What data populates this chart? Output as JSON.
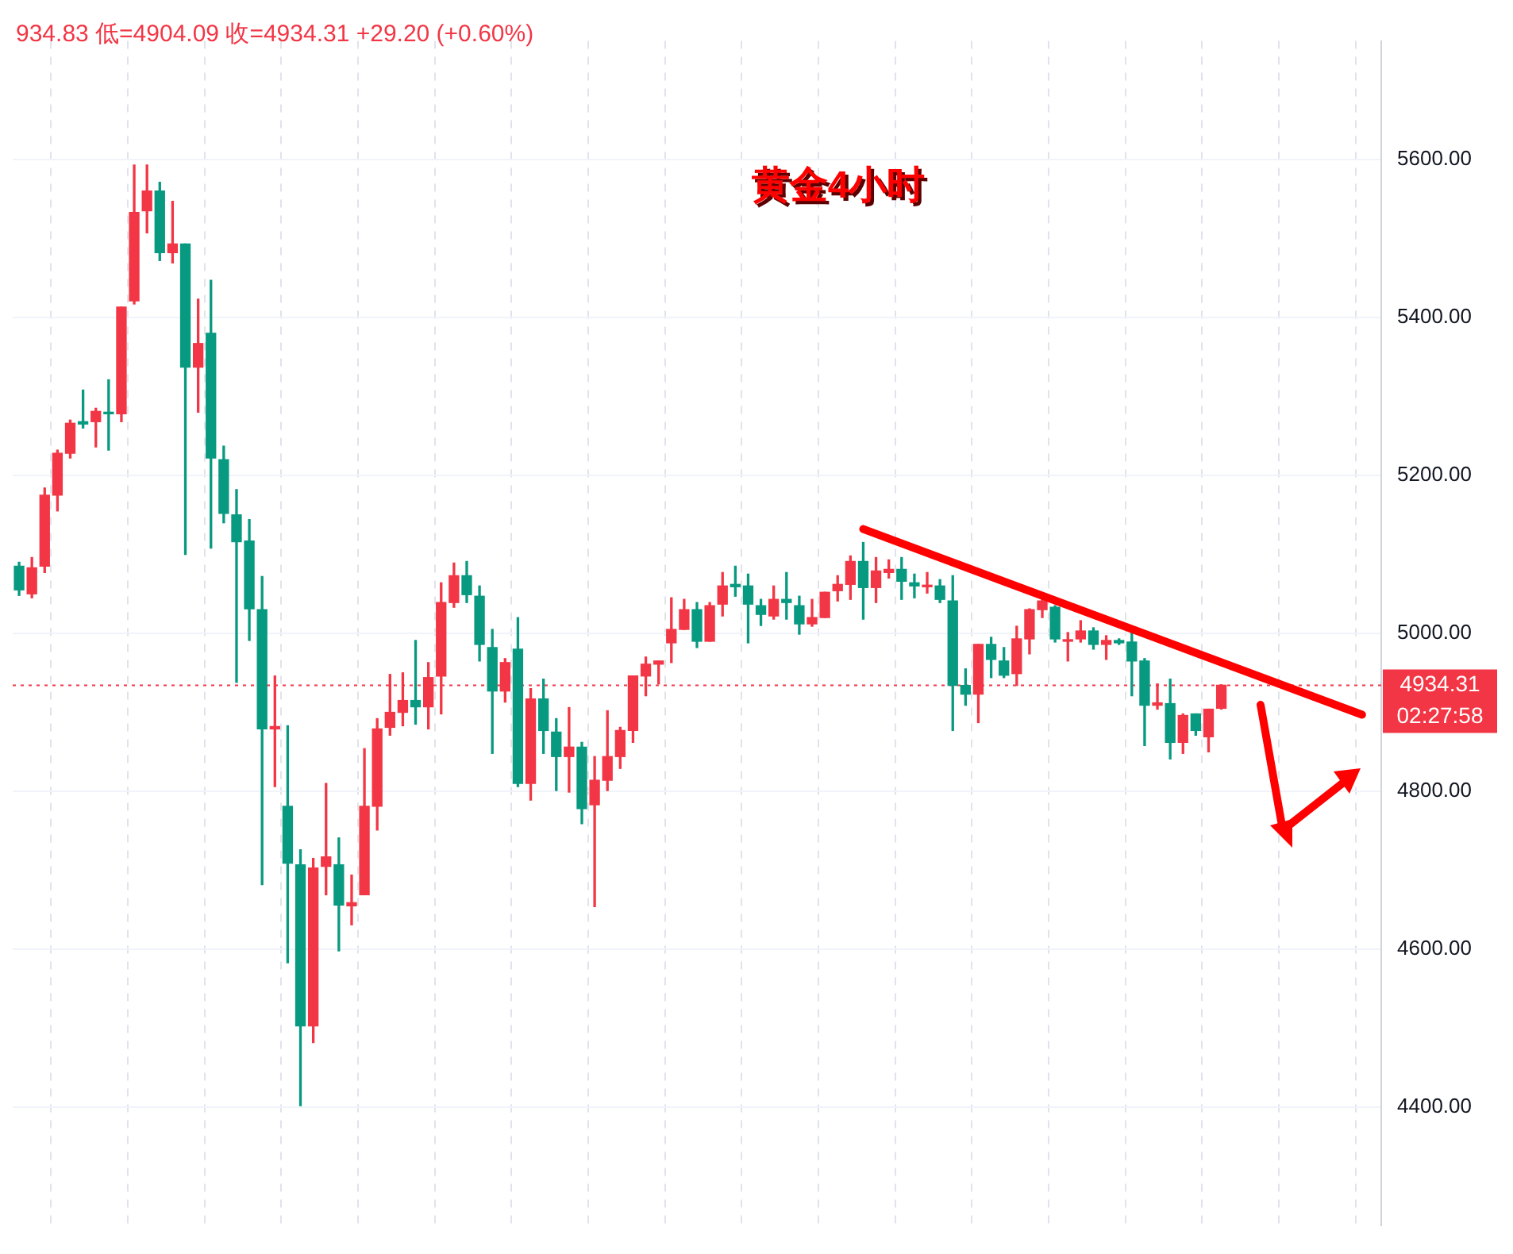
{
  "chart_data": {
    "type": "candlestick",
    "title": "黄金4小时",
    "annotations": [
      "934.83 低=4904.09 收=4934.31 +29.20 (+0.60%)",
      "02:27:58"
    ],
    "categories": [
      null,
      null,
      null,
      null,
      null,
      null,
      null,
      null,
      null,
      null,
      null,
      null,
      null,
      null,
      null,
      null,
      null,
      null,
      null,
      null,
      null,
      null,
      null,
      null,
      null,
      null,
      null,
      null,
      null,
      null,
      null,
      null,
      null,
      null,
      null,
      null,
      null,
      null,
      null,
      null,
      null,
      null,
      null,
      null,
      null,
      null,
      null,
      null,
      null,
      null,
      null,
      null,
      null,
      null,
      null,
      null,
      null,
      null,
      null,
      null,
      null,
      null,
      null,
      null,
      null,
      null,
      null,
      null,
      null,
      null,
      null,
      null,
      null,
      null,
      null,
      null,
      null,
      null,
      null,
      null,
      null,
      null,
      null,
      null,
      null,
      null,
      null,
      null,
      null,
      null,
      null,
      null,
      null,
      null,
      null,
      null,
      null,
      null,
      null,
      null,
      null,
      null,
      null,
      null,
      null,
      null,
      null
    ],
    "ohlc": [
      [
        5085,
        5090,
        5048,
        5055
      ],
      [
        5050,
        5096,
        5045,
        5083
      ],
      [
        5085,
        5184,
        5077,
        5175
      ],
      [
        5175,
        5232,
        5155,
        5228
      ],
      [
        5228,
        5270,
        5222,
        5266
      ],
      [
        5268,
        5308,
        5260,
        5265
      ],
      [
        5268,
        5285,
        5236,
        5281
      ],
      [
        5280,
        5321,
        5232,
        5278
      ],
      [
        5278,
        5413,
        5268,
        5413
      ],
      [
        5421,
        5593,
        5417,
        5533
      ],
      [
        5535,
        5593,
        5507,
        5560
      ],
      [
        5560,
        5571,
        5472,
        5482
      ],
      [
        5482,
        5547,
        5469,
        5493
      ],
      [
        5493,
        5493,
        5100,
        5337
      ],
      [
        5337,
        5423,
        5280,
        5367
      ],
      [
        5380,
        5447,
        5108,
        5222
      ],
      [
        5220,
        5237,
        5140,
        5152
      ],
      [
        5150,
        5182,
        4938,
        5116
      ],
      [
        5117,
        5144,
        4991,
        5031
      ],
      [
        5030,
        5072,
        4682,
        4879
      ],
      [
        4879,
        4946,
        4806,
        4882
      ],
      [
        4781,
        4883,
        4583,
        4709
      ],
      [
        4707,
        4726,
        4402,
        4503
      ],
      [
        4503,
        4715,
        4482,
        4703
      ],
      [
        4705,
        4810,
        4669,
        4717
      ],
      [
        4707,
        4741,
        4598,
        4656
      ],
      [
        4655,
        4694,
        4631,
        4659
      ],
      [
        4669,
        4854,
        4669,
        4781
      ],
      [
        4781,
        4892,
        4751,
        4879
      ],
      [
        4881,
        4948,
        4871,
        4900
      ],
      [
        4900,
        4950,
        4883,
        4915
      ],
      [
        4915,
        4991,
        4885,
        4907
      ],
      [
        4907,
        4963,
        4879,
        4944
      ],
      [
        4946,
        5064,
        4898,
        5039
      ],
      [
        5039,
        5089,
        5033,
        5073
      ],
      [
        5073,
        5091,
        5039,
        5049
      ],
      [
        5047,
        5060,
        4965,
        4986
      ],
      [
        4982,
        5005,
        4848,
        4927
      ],
      [
        4927,
        4968,
        4913,
        4963
      ],
      [
        4980,
        5020,
        4806,
        4810
      ],
      [
        4810,
        4930,
        4789,
        4917
      ],
      [
        4917,
        4942,
        4848,
        4877
      ],
      [
        4875,
        4892,
        4801,
        4844
      ],
      [
        4844,
        4906,
        4799,
        4856
      ],
      [
        4856,
        4862,
        4759,
        4778
      ],
      [
        4783,
        4844,
        4654,
        4814
      ],
      [
        4814,
        4902,
        4801,
        4844
      ],
      [
        4844,
        4881,
        4829,
        4877
      ],
      [
        4877,
        4946,
        4862,
        4946
      ],
      [
        4946,
        4970,
        4921,
        4961
      ],
      [
        4961,
        4965,
        4936,
        4965
      ],
      [
        4988,
        5045,
        4963,
        5005
      ],
      [
        5005,
        5043,
        5005,
        5030
      ],
      [
        5030,
        5039,
        4982,
        4990
      ],
      [
        4990,
        5039,
        4990,
        5035
      ],
      [
        5037,
        5077,
        5022,
        5060
      ],
      [
        5062,
        5085,
        5047,
        5059
      ],
      [
        5060,
        5075,
        4988,
        5037
      ],
      [
        5035,
        5043,
        5010,
        5024
      ],
      [
        5022,
        5060,
        5018,
        5043
      ],
      [
        5043,
        5077,
        5018,
        5039
      ],
      [
        5035,
        5047,
        4999,
        5012
      ],
      [
        5012,
        5043,
        5009,
        5020
      ],
      [
        5020,
        5052,
        5020,
        5052
      ],
      [
        5054,
        5073,
        5041,
        5062
      ],
      [
        5062,
        5098,
        5043,
        5091
      ],
      [
        5091,
        5115,
        5018,
        5058
      ],
      [
        5058,
        5096,
        5039,
        5079
      ],
      [
        5077,
        5093,
        5070,
        5081
      ],
      [
        5081,
        5096,
        5043,
        5066
      ],
      [
        5064,
        5075,
        5045,
        5060
      ],
      [
        5059,
        5077,
        5051,
        5061
      ],
      [
        5060,
        5068,
        5039,
        5043
      ],
      [
        5041,
        5073,
        4877,
        4934
      ],
      [
        4934,
        4955,
        4909,
        4923
      ],
      [
        4923,
        4986,
        4887,
        4986
      ],
      [
        4986,
        4995,
        4944,
        4967
      ],
      [
        4965,
        4982,
        4944,
        4947
      ],
      [
        4949,
        5009,
        4934,
        4993
      ],
      [
        4993,
        5031,
        4974,
        5030
      ],
      [
        5030,
        5047,
        5020,
        5041
      ],
      [
        5033,
        5035,
        4989,
        4993
      ],
      [
        4990,
        5001,
        4965,
        4992
      ],
      [
        4993,
        5016,
        4989,
        5003
      ],
      [
        5003,
        5007,
        4980,
        4986
      ],
      [
        4986,
        4997,
        4967,
        4991
      ],
      [
        4991,
        4993,
        4986,
        4988
      ],
      [
        4989,
        5001,
        4921,
        4965
      ],
      [
        4965,
        4968,
        4858,
        4909
      ],
      [
        4909,
        4936,
        4904,
        4912
      ],
      [
        4911,
        4942,
        4841,
        4862
      ],
      [
        4862,
        4898,
        4848,
        4896
      ],
      [
        4898,
        4898,
        4871,
        4877
      ],
      [
        4869,
        4904,
        4850,
        4904
      ],
      [
        4905.11,
        4934.83,
        4904.09,
        4934.31
      ],
      null,
      null,
      null,
      null,
      null,
      null,
      null,
      null,
      null,
      null,
      null,
      null
    ],
    "colors": [
      "#089981",
      "#f23645",
      "#f23645",
      "#f23645",
      "#f23645",
      "#089981",
      "#f23645",
      "#089981",
      "#f23645",
      "#f23645",
      "#f23645",
      "#089981",
      "#f23645",
      "#089981",
      "#f23645",
      "#089981",
      "#089981",
      "#089981",
      "#089981",
      "#089981",
      "#f23645",
      "#089981",
      "#089981",
      "#f23645",
      "#f23645",
      "#089981",
      "#f23645",
      "#f23645",
      "#f23645",
      "#f23645",
      "#f23645",
      "#089981",
      "#f23645",
      "#f23645",
      "#f23645",
      "#089981",
      "#089981",
      "#089981",
      "#f23645",
      "#089981",
      "#f23645",
      "#089981",
      "#089981",
      "#f23645",
      "#089981",
      "#f23645",
      "#f23645",
      "#f23645",
      "#f23645",
      "#f23645",
      "#f23645",
      "#f23645",
      "#f23645",
      "#089981",
      "#f23645",
      "#f23645",
      "#089981",
      "#089981",
      "#089981",
      "#f23645",
      "#089981",
      "#089981",
      "#f23645",
      "#f23645",
      "#f23645",
      "#f23645",
      "#089981",
      "#f23645",
      "#f23645",
      "#089981",
      "#089981",
      "#f23645",
      "#089981",
      "#089981",
      "#089981",
      "#f23645",
      "#089981",
      "#089981",
      "#f23645",
      "#f23645",
      "#f23645",
      "#089981",
      "#f23645",
      "#f23645",
      "#089981",
      "#f23645",
      "#089981",
      "#089981",
      "#089981",
      "#f23645",
      "#089981",
      "#f23645",
      "#089981",
      "#f23645",
      "#f23645",
      null,
      null,
      null,
      null,
      null,
      null,
      null,
      null,
      null,
      null,
      null,
      null
    ],
    "series": [
      {
        "type": "line",
        "color": "#ff0000",
        "values": [
          null,
          null,
          null,
          null,
          null,
          null,
          null,
          null,
          null,
          null,
          null,
          null,
          null,
          null,
          null,
          null,
          null,
          null,
          null,
          null,
          null,
          null,
          null,
          null,
          null,
          null,
          null,
          null,
          null,
          null,
          null,
          null,
          null,
          null,
          null,
          null,
          null,
          null,
          null,
          null,
          null,
          null,
          null,
          null,
          null,
          null,
          null,
          null,
          null,
          null,
          null,
          null,
          null,
          null,
          null,
          null,
          null,
          null,
          null,
          null,
          null,
          null,
          null,
          null,
          null,
          null,
          5132,
          null,
          null,
          null,
          null,
          null,
          null,
          null,
          null,
          null,
          null,
          null,
          null,
          null,
          null,
          null,
          null,
          null,
          null,
          null,
          null,
          null,
          null,
          null,
          null,
          null,
          null,
          null,
          null,
          null,
          null,
          null,
          null,
          null,
          null,
          null,
          null,
          null,
          null,
          4897,
          null
        ]
      }
    ],
    "ref_lines": [
      {
        "axis": "y",
        "value": 4934.31,
        "label": "4934.31",
        "color": "#f23645",
        "line_style": "dotted"
      }
    ],
    "ylim": [
      4250,
      5750
    ],
    "yticks": [
      {
        "value": 4400,
        "label": "4400.00"
      },
      {
        "value": 4600,
        "label": "4600.00"
      },
      {
        "value": 4800,
        "label": "4800.00"
      },
      {
        "value": 5000,
        "label": "5000.00"
      },
      {
        "value": 5200,
        "label": "5200.00"
      },
      {
        "value": 5400,
        "label": "5400.00"
      },
      {
        "value": 5600,
        "label": "5600.00"
      }
    ],
    "grid": true,
    "legend": false,
    "tick_labels": "y"
  }
}
